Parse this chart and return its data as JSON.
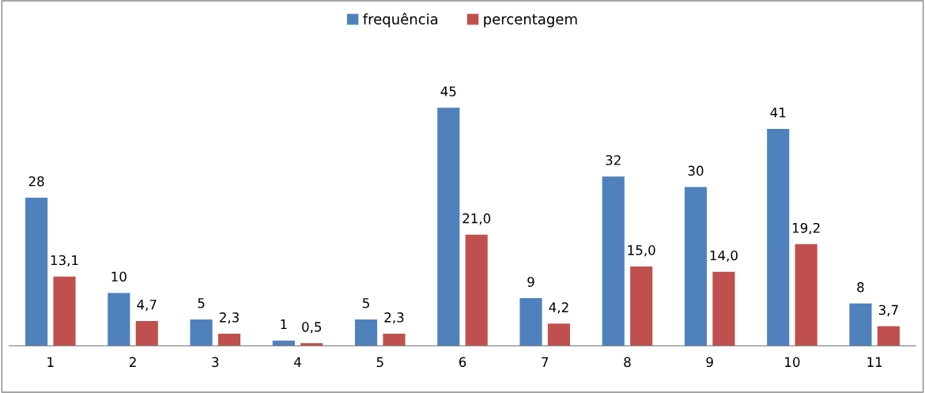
{
  "chart_data": {
    "type": "bar",
    "categories": [
      "1",
      "2",
      "3",
      "4",
      "5",
      "6",
      "7",
      "8",
      "9",
      "10",
      "11"
    ],
    "series": [
      {
        "name": "frequência",
        "color": "#4f81bd",
        "values": [
          28,
          10,
          5,
          1,
          5,
          45,
          9,
          32,
          30,
          41,
          8
        ],
        "value_labels": [
          "28",
          "10",
          "5",
          "1",
          "5",
          "45",
          "9",
          "32",
          "30",
          "41",
          "8"
        ]
      },
      {
        "name": "percentagem",
        "color": "#c0504d",
        "values": [
          13.1,
          4.7,
          2.3,
          0.5,
          2.3,
          21.0,
          4.2,
          15.0,
          14.0,
          19.2,
          3.7
        ],
        "value_labels": [
          "13,1",
          "4,7",
          "2,3",
          "0,5",
          "2,3",
          "21,0",
          "4,2",
          "15,0",
          "14,0",
          "19,2",
          "3,7"
        ]
      }
    ],
    "legend": "top",
    "grid": false,
    "tick_labels": "x"
  }
}
